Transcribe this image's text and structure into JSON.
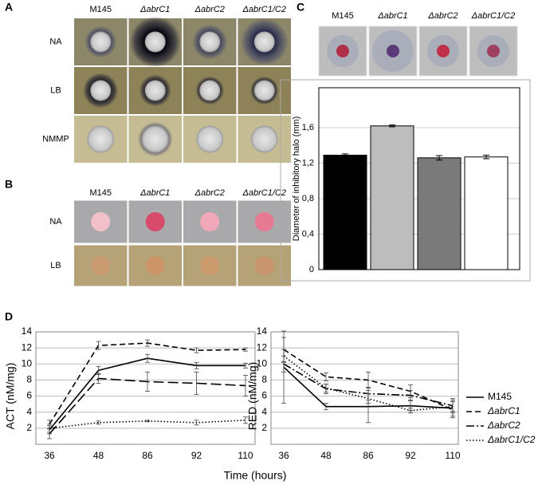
{
  "panels": {
    "A": {
      "label": "A",
      "columns": [
        "M145",
        "ΔabrC1",
        "ΔabrC2",
        "ΔabrC1/C2"
      ],
      "rows": [
        "NA",
        "LB",
        "NMMP"
      ]
    },
    "B": {
      "label": "B",
      "columns": [
        "M145",
        "ΔabrC1",
        "ΔabrC2",
        "ΔabrC1/C2"
      ],
      "rows": [
        "NA",
        "LB"
      ]
    },
    "C": {
      "label": "C"
    },
    "D": {
      "label": "D",
      "xlabel": "Time (hours)"
    }
  },
  "chart_data": [
    {
      "type": "bar",
      "ylabel": "Diameter of inhibitory halo (mm)",
      "categories": [
        "M145",
        "ΔabrC1",
        "ΔabrC2",
        "ΔabrC1/C2"
      ],
      "values": [
        1.29,
        1.62,
        1.26,
        1.27
      ],
      "errors": [
        0.015,
        0.01,
        0.025,
        0.02
      ],
      "colors": [
        "#000000",
        "#bdbdbd",
        "#7a7a7a",
        "#ffffff"
      ],
      "ylim": [
        0,
        2.05
      ],
      "yticks": [
        0,
        {
          "value": 0.4,
          "label": "0,4"
        },
        {
          "value": 0.8,
          "label": "0,8"
        },
        {
          "value": 1.2,
          "label": "1,2"
        },
        {
          "value": 1.6,
          "label": "1,6"
        }
      ],
      "grid": true
    },
    {
      "type": "line",
      "ylabel": "ACT (nM/mg)",
      "categories": [
        "36",
        "48",
        "86",
        "92",
        "110"
      ],
      "ylim": [
        0,
        14
      ],
      "yticks": [
        2,
        4,
        6,
        8,
        10,
        12,
        14
      ],
      "grid": true,
      "series": [
        {
          "color": "#000000",
          "dash": "solid",
          "values": [
            1.8,
            9.2,
            10.7,
            9.8,
            9.8
          ],
          "errors": [
            0.5,
            0.5,
            0.5,
            0.4,
            0.3
          ]
        },
        {
          "color": "#000000",
          "dash": "dashed",
          "values": [
            2.5,
            12.3,
            12.6,
            11.7,
            11.8
          ],
          "errors": [
            0.5,
            0.5,
            0.4,
            0.3,
            0.2
          ]
        },
        {
          "color": "#000000",
          "dash": "longdash",
          "values": [
            1.3,
            8.2,
            7.8,
            7.6,
            7.3
          ],
          "errors": [
            0.6,
            0.6,
            1.2,
            1.4,
            1.3
          ]
        },
        {
          "color": "#000000",
          "dash": "dotted",
          "values": [
            2.0,
            2.7,
            2.9,
            2.7,
            3.0
          ],
          "errors": [
            0.5,
            0.2,
            0.1,
            0.3,
            0.4
          ]
        }
      ]
    },
    {
      "type": "line",
      "ylabel": "RED (nM/mg)",
      "categories": [
        "36",
        "48",
        "86",
        "92",
        "110"
      ],
      "ylim": [
        0,
        14
      ],
      "yticks": [
        2,
        4,
        6,
        8,
        10,
        12,
        14
      ],
      "grid": true,
      "legend": "right",
      "series": [
        {
          "name": "M145",
          "color": "#000000",
          "dash": "solid",
          "values": [
            9.6,
            4.7,
            4.7,
            4.8,
            4.5
          ],
          "errors": [
            4.5,
            0.4,
            2.0,
            0.6,
            1.0
          ]
        },
        {
          "name": "ΔabrC1",
          "color": "#000000",
          "dash": "dashed",
          "values": [
            11.8,
            8.4,
            8.0,
            6.6,
            4.3
          ],
          "errors": [
            1.5,
            0.5,
            1.0,
            0.8,
            1.0
          ]
        },
        {
          "name": "ΔabrC2",
          "color": "#000000",
          "dash": "dashdot",
          "values": [
            10.0,
            6.9,
            6.3,
            6.1,
            4.8
          ],
          "errors": [
            1.0,
            0.6,
            0.8,
            0.6,
            0.9
          ]
        },
        {
          "name": "ΔabrC1/C2",
          "color": "#000000",
          "dash": "dotted",
          "values": [
            11.0,
            7.0,
            5.7,
            4.2,
            4.7
          ],
          "errors": [
            0.8,
            0.5,
            0.6,
            0.3,
            0.6
          ]
        }
      ]
    }
  ]
}
